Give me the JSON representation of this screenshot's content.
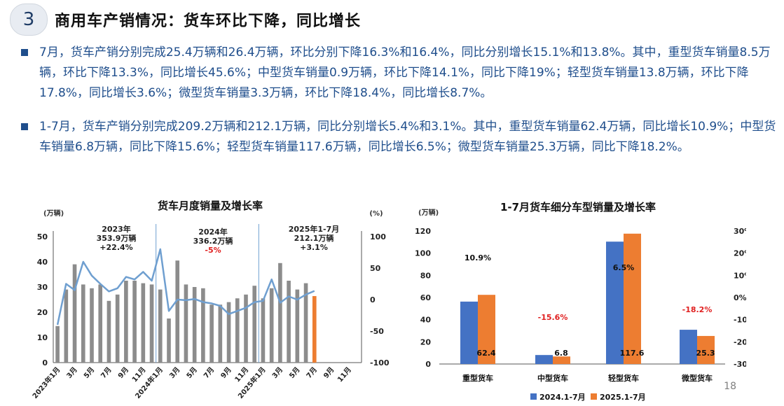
{
  "header": {
    "section_number": "3",
    "title": "商用车产销情况：货车环比下降，同比增长"
  },
  "bullets": [
    "7月，货车产销分别完成25.4万辆和26.4万辆，环比分别下降16.3%和16.4%，同比分别增长15.1%和13.8%。其中，重型货车销量8.5万辆，环比下降13.3%，同比增长45.6%；中型货车销量0.9万辆，环比下降14.1%，同比下降19%；轻型货车销量13.8万辆，环比下降17.8%，同比增长3.6%；微型货车销量3.3万辆，环比下降18.4%，同比增长8.7%。",
    "1-7月，货车产销分别完成209.2万辆和212.1万辆，同比分别增长5.4%和3.1%。其中，重型货车销量62.4万辆，同比增长10.9%；中型货车销量6.8万辆，同比下降15.6%；轻型货车销量117.6万辆，同比增长6.5%；微型货车销量25.3万辆，同比下降18.2%。"
  ],
  "page_number": "18",
  "colors": {
    "accent_blue": "#1f4e8c",
    "bar_gray": "#8c8c8c",
    "line_blue": "#6f9fd0",
    "highlight_orange": "#ed7d31",
    "series_blue": "#4472c4",
    "negative_red": "#e02020"
  },
  "chart_data": [
    {
      "type": "bar",
      "title": "货车月度销量及增长率",
      "y_unit_left": "(万辆)",
      "y_unit_right": "(%)",
      "ylim": [
        0,
        50
      ],
      "y2lim": [
        -100,
        100
      ],
      "yticks": [
        0,
        10,
        20,
        30,
        40,
        50
      ],
      "y2ticks": [
        -100,
        -50,
        0,
        50,
        100
      ],
      "x_tick_labels": [
        "2023年1月",
        "3月",
        "5月",
        "7月",
        "9月",
        "11月",
        "2024年1月",
        "3月",
        "5月",
        "7月",
        "9月",
        "11月",
        "2025年1月",
        "3月",
        "5月",
        "7月",
        "9月",
        "11月"
      ],
      "months": [
        "2023-01",
        "2023-02",
        "2023-03",
        "2023-04",
        "2023-05",
        "2023-06",
        "2023-07",
        "2023-08",
        "2023-09",
        "2023-10",
        "2023-11",
        "2023-12",
        "2024-01",
        "2024-02",
        "2024-03",
        "2024-04",
        "2024-05",
        "2024-06",
        "2024-07",
        "2024-08",
        "2024-09",
        "2024-10",
        "2024-11",
        "2024-12",
        "2025-01",
        "2025-02",
        "2025-03",
        "2025-04",
        "2025-05",
        "2025-06",
        "2025-07",
        "2025-08",
        "2025-09",
        "2025-10",
        "2025-11",
        "2025-12"
      ],
      "series": [
        {
          "kind": "bar",
          "values": [
            14.5,
            29,
            39,
            31,
            29.5,
            31,
            24.5,
            27,
            32.5,
            32.5,
            31.5,
            31,
            29,
            17.5,
            40.5,
            31,
            30,
            29.5,
            23,
            23,
            24,
            25.5,
            27,
            30.5,
            25.5,
            29.5,
            39.5,
            32.5,
            29,
            31.5,
            26.4
          ]
        },
        {
          "kind": "line",
          "axis": "right",
          "values": [
            -40,
            25,
            15,
            60,
            38,
            25,
            13,
            18,
            36,
            32,
            44,
            30,
            80,
            -18,
            0,
            -1,
            1,
            -4,
            -6,
            -10,
            -23,
            -18,
            -13,
            -4,
            -2,
            32,
            -5,
            5,
            0,
            8,
            13.8
          ]
        }
      ],
      "highlight_last_bar": true,
      "annotations": [
        {
          "lines": [
            "2023年",
            "353.9万辆",
            "+22.4%"
          ],
          "colors": [
            "#1f1f1f",
            "#1f1f1f",
            "#1f1f1f"
          ]
        },
        {
          "lines": [
            "2024年",
            "336.2万辆",
            "-5%"
          ],
          "colors": [
            "#1f1f1f",
            "#1f1f1f",
            "#e02020"
          ]
        },
        {
          "lines": [
            "2025年1-7月",
            "212.1万辆",
            "+3.1%"
          ],
          "colors": [
            "#1f1f1f",
            "#1f1f1f",
            "#1f1f1f"
          ]
        }
      ]
    },
    {
      "type": "bar",
      "title": "1-7月货车细分车型销量及增长率",
      "y_unit_left": "(万辆)",
      "ylim": [
        0,
        120
      ],
      "y2lim": [
        -30,
        30
      ],
      "yticks": [
        0,
        20,
        40,
        60,
        80,
        100,
        120
      ],
      "y2ticks": [
        "-30%",
        "-20%",
        "-10%",
        "0%",
        "10%",
        "20%",
        "30%"
      ],
      "categories": [
        "重型货车",
        "中型货车",
        "轻型货车",
        "微型货车"
      ],
      "series": [
        {
          "name": "2024.1-7月",
          "color": "#4472c4",
          "values": [
            56.3,
            8.1,
            110.4,
            30.9
          ]
        },
        {
          "name": "2025.1-7月",
          "color": "#ed7d31",
          "values": [
            62.4,
            6.8,
            117.6,
            25.3
          ]
        }
      ],
      "value_labels": [
        "62.4",
        "6.8",
        "117.6",
        "25.3"
      ],
      "growth_labels": [
        "10.9%",
        "-15.6%",
        "6.5%",
        "-18.2%"
      ],
      "legend": "bottom"
    }
  ]
}
